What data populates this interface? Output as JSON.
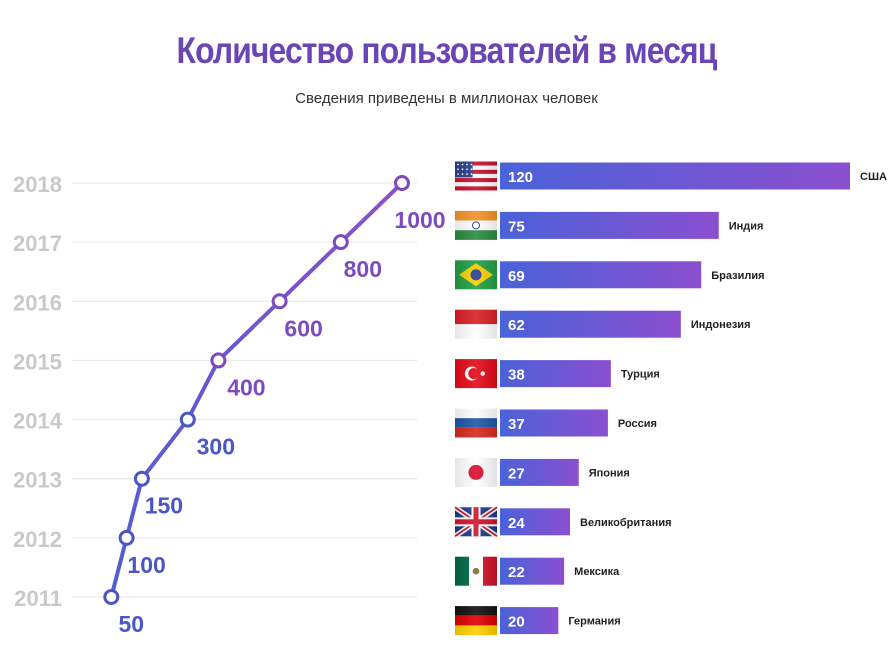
{
  "header": {
    "title": "Количество пользователей в месяц",
    "subtitle": "Сведения приведены в миллионах человек"
  },
  "chart_data": [
    {
      "type": "line",
      "x": [
        2011,
        2012,
        2013,
        2014,
        2015,
        2016,
        2017,
        2018
      ],
      "values": [
        50,
        100,
        150,
        300,
        400,
        600,
        800,
        1000
      ],
      "data_labels": [
        "50",
        "100",
        "150",
        "300",
        "400",
        "600",
        "800",
        "1000"
      ],
      "tick_labels": [
        "2011",
        "2012",
        "2013",
        "2014",
        "2015",
        "2016",
        "2017",
        "2018"
      ],
      "ylim": [
        0,
        1000
      ],
      "orientation": "years on vertical axis, values increase to the right",
      "grid": true,
      "colors": {
        "line_start": "#4f5fd1",
        "line_end": "#8b4fc9",
        "label_early": "#4a57c4",
        "label_late": "#7d4bbf",
        "tick": "#c9c9c9",
        "grid": "#e6e6e6"
      }
    },
    {
      "type": "bar",
      "orientation": "horizontal",
      "categories": [
        "США",
        "Индия",
        "Бразилия",
        "Индонезия",
        "Турция",
        "Россия",
        "Япония",
        "Великобритания",
        "Мексика",
        "Германия"
      ],
      "values": [
        120,
        75,
        69,
        62,
        38,
        37,
        27,
        24,
        22,
        20
      ],
      "flags": [
        "us-flag-icon",
        "india-flag-icon",
        "brazil-flag-icon",
        "indonesia-flag-icon",
        "turkey-flag-icon",
        "russia-flag-icon",
        "japan-flag-icon",
        "uk-flag-icon",
        "mexico-flag-icon",
        "germany-flag-icon"
      ],
      "colors": {
        "bar_start": "#4a62d8",
        "bar_end": "#8b4fd0",
        "value_text": "#ffffff",
        "label_text": "#222222"
      }
    }
  ]
}
